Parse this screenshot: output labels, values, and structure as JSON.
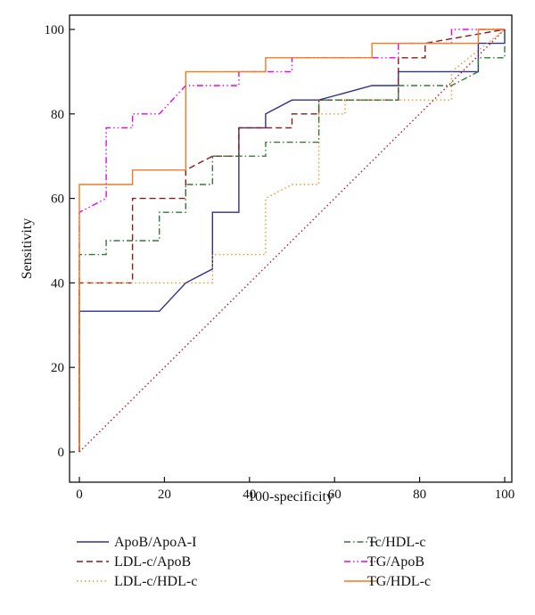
{
  "chart_data": {
    "type": "line",
    "xlabel": "100-specificity",
    "ylabel": "Sensitivity",
    "xlim": [
      0,
      100
    ],
    "ylim": [
      0,
      100
    ],
    "x_ticks": [
      "0",
      "20",
      "40",
      "60",
      "80",
      "100"
    ],
    "y_ticks": [
      "0",
      "20",
      "40",
      "60",
      "80",
      "100"
    ],
    "grid": false,
    "legend_position": "bottom",
    "series": [
      {
        "name": "ApoB/ApoA-I",
        "color": "#2e3192",
        "dash": "solid",
        "x": [
          0,
          0,
          18.8,
          25,
          31.3,
          31.3,
          37.5,
          37.5,
          43.8,
          43.8,
          50,
          56.3,
          68.8,
          75,
          75,
          87.5,
          93.8,
          93.8,
          100,
          100
        ],
        "y": [
          0,
          33.3,
          33.3,
          40,
          43.3,
          56.7,
          56.7,
          76.7,
          76.7,
          80,
          83.3,
          83.3,
          86.7,
          86.7,
          90,
          90,
          90,
          96.7,
          96.7,
          100
        ]
      },
      {
        "name": "LDL-c/ApoB",
        "color": "#8b1a1a",
        "dash": "dashed",
        "x": [
          0,
          0,
          12.5,
          12.5,
          25,
          25,
          31.3,
          37.5,
          37.5,
          50,
          50,
          56.3,
          56.3,
          75,
          75,
          81.3,
          81.3,
          100
        ],
        "y": [
          0,
          40,
          40,
          60,
          60,
          66.7,
          70,
          70,
          76.7,
          76.7,
          80,
          80,
          83.3,
          83.3,
          93.3,
          93.3,
          96.7,
          100
        ]
      },
      {
        "name": "LDL-c/HDL-c",
        "color": "#f7941d",
        "dash": "dotted",
        "x": [
          0,
          0,
          31.3,
          31.3,
          43.8,
          43.8,
          50,
          56.3,
          56.3,
          62.5,
          62.5,
          87.5,
          87.5,
          100
        ],
        "y": [
          0,
          40,
          40,
          46.7,
          46.7,
          60,
          63.3,
          63.3,
          80,
          80,
          83.3,
          83.3,
          90,
          100
        ]
      },
      {
        "name": "Tc/HDL-c",
        "color": "#2e7d32",
        "dash": "dashdot",
        "x": [
          0,
          0,
          6.3,
          6.3,
          18.8,
          18.8,
          25,
          25,
          31.3,
          31.3,
          43.8,
          43.8,
          56.3,
          56.3,
          75,
          75,
          87.5,
          93.8,
          93.8,
          100,
          100
        ],
        "y": [
          0,
          46.7,
          46.7,
          50,
          50,
          56.7,
          56.7,
          63.3,
          63.3,
          70,
          70,
          73.3,
          73.3,
          83.3,
          83.3,
          86.7,
          86.7,
          90,
          93.3,
          93.3,
          100
        ]
      },
      {
        "name": "TG/ApoB",
        "color": "#ec00ec",
        "dash": "dashdotdot",
        "x": [
          0,
          0,
          6.3,
          6.3,
          12.5,
          12.5,
          18.8,
          25,
          25,
          37.5,
          37.5,
          43.8,
          50,
          50,
          75,
          75,
          87.5,
          87.5,
          93.8,
          100
        ],
        "y": [
          0,
          56.7,
          60,
          76.7,
          76.7,
          80,
          80,
          86.7,
          86.7,
          86.7,
          90,
          90,
          90,
          93.3,
          93.3,
          96.7,
          96.7,
          100,
          100,
          100
        ]
      },
      {
        "name": "TG/HDL-c",
        "color": "#f47920",
        "dash": "solid",
        "x": [
          0,
          0,
          12.5,
          12.5,
          25,
          25,
          43.8,
          43.8,
          68.8,
          68.8,
          93.8,
          93.8,
          100
        ],
        "y": [
          0,
          63.3,
          63.3,
          66.7,
          66.7,
          90,
          90,
          93.3,
          93.3,
          96.7,
          96.7,
          100,
          100
        ]
      },
      {
        "name": "",
        "color": "#c0141e",
        "dash": "reference-dotted",
        "x": [
          0,
          100
        ],
        "y": [
          0,
          100
        ]
      }
    ],
    "legend": [
      {
        "label": "ApoB/ApoA-I",
        "color": "#2e3192",
        "dash": "solid"
      },
      {
        "label": "LDL-c/ApoB",
        "color": "#8b1a1a",
        "dash": "dashed"
      },
      {
        "label": "LDL-c/HDL-c",
        "color": "#f7941d",
        "dash": "dotted"
      },
      {
        "label": "Tc/HDL-c",
        "color": "#2e7d32",
        "dash": "dashdot"
      },
      {
        "label": "TG/ApoB",
        "color": "#ec00ec",
        "dash": "dashdotdot"
      },
      {
        "label": "TG/HDL-c",
        "color": "#f47920",
        "dash": "solid"
      }
    ]
  }
}
